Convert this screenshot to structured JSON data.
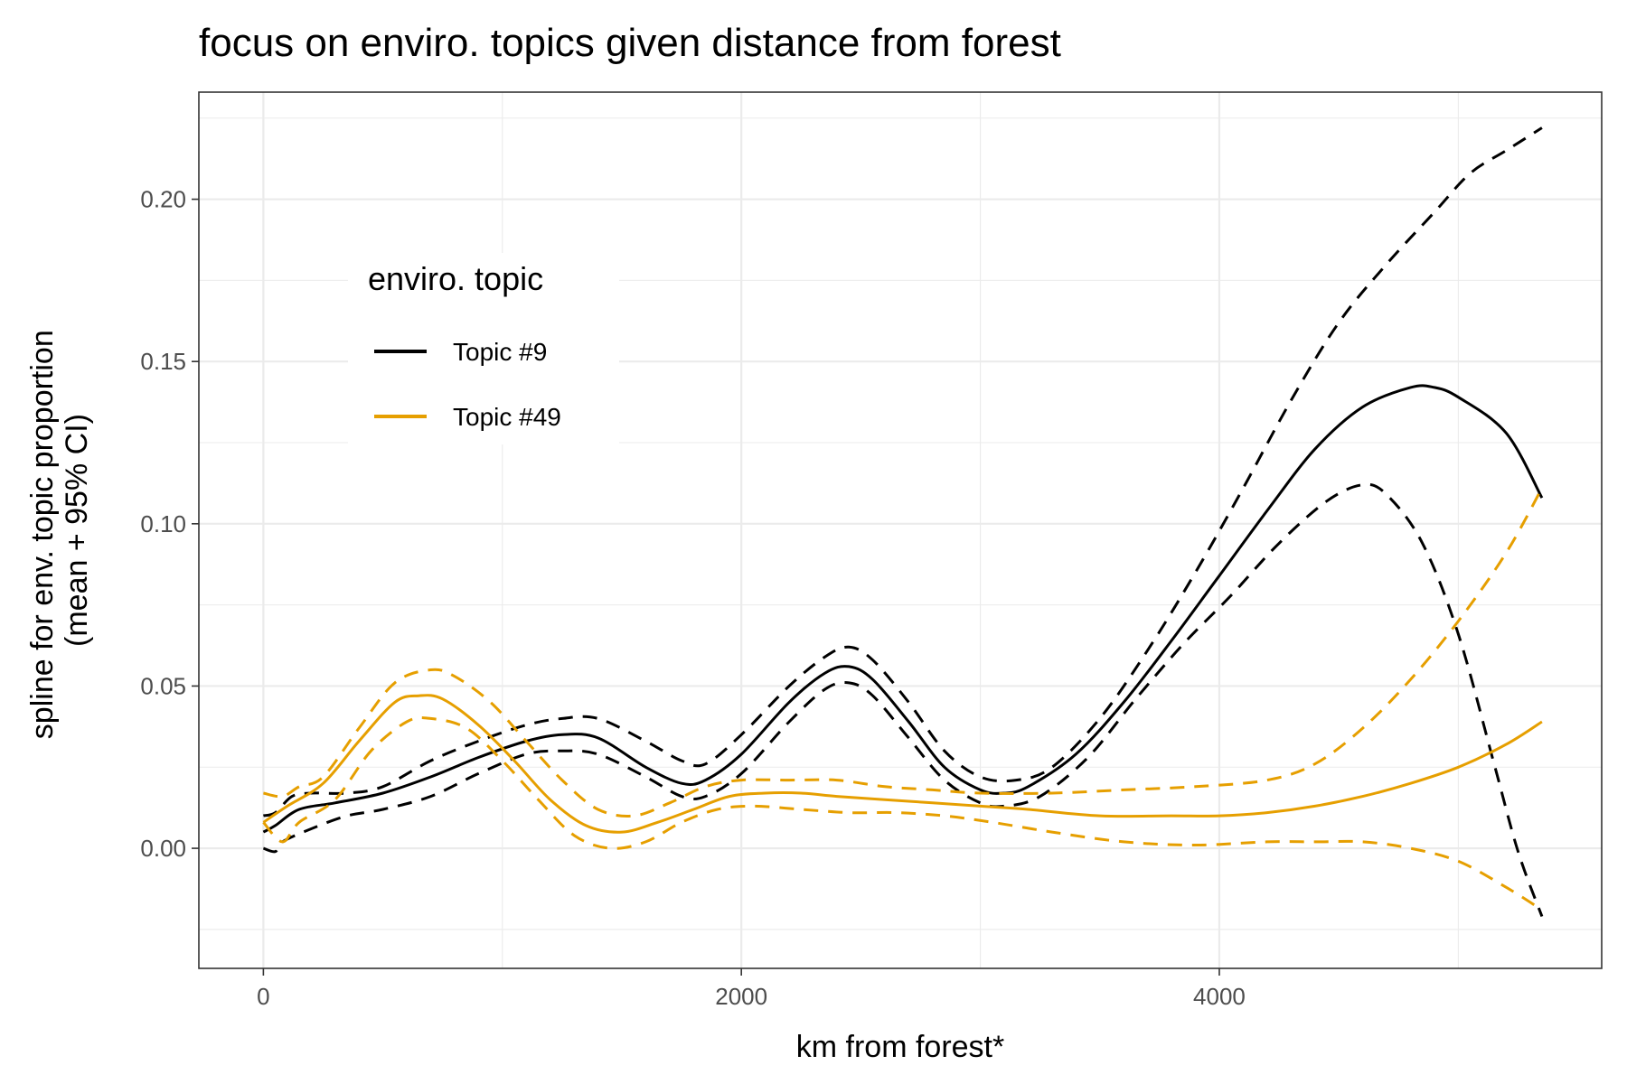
{
  "chart_data": {
    "type": "line",
    "title": "focus on enviro. topics given distance from forest",
    "xlabel": "km from forest*",
    "ylabel": [
      "spline for env. topic proportion",
      "(mean + 95% CI)"
    ],
    "xlim": [
      -270,
      5600
    ],
    "ylim": [
      -0.037,
      0.233
    ],
    "x_ticks": [
      0,
      2000,
      4000
    ],
    "x_tick_labels": [
      "0",
      "2000",
      "4000"
    ],
    "y_ticks": [
      0,
      0.05,
      0.1,
      0.15,
      0.2
    ],
    "y_tick_labels": [
      "0.00",
      "0.05",
      "0.10",
      "0.15",
      "0.20"
    ],
    "grid": true,
    "legend": {
      "title": "enviro. topic",
      "placement": "top-left inside",
      "entries": [
        "Topic #9",
        "Topic #49"
      ]
    },
    "colors": {
      "Topic #9": "#000000",
      "Topic #49": "#E69F00"
    },
    "series": [
      {
        "name": "Topic #9",
        "color": "#000000",
        "style": "solid",
        "points": [
          [
            0,
            0.005
          ],
          [
            50,
            0.007
          ],
          [
            150,
            0.012
          ],
          [
            300,
            0.014
          ],
          [
            500,
            0.017
          ],
          [
            700,
            0.022
          ],
          [
            900,
            0.028
          ],
          [
            1100,
            0.033
          ],
          [
            1250,
            0.035
          ],
          [
            1400,
            0.034
          ],
          [
            1600,
            0.025
          ],
          [
            1750,
            0.02
          ],
          [
            1850,
            0.021
          ],
          [
            2000,
            0.029
          ],
          [
            2200,
            0.045
          ],
          [
            2350,
            0.054
          ],
          [
            2450,
            0.056
          ],
          [
            2550,
            0.052
          ],
          [
            2700,
            0.039
          ],
          [
            2850,
            0.025
          ],
          [
            3000,
            0.018
          ],
          [
            3100,
            0.017
          ],
          [
            3200,
            0.019
          ],
          [
            3400,
            0.029
          ],
          [
            3600,
            0.045
          ],
          [
            3800,
            0.064
          ],
          [
            4000,
            0.084
          ],
          [
            4200,
            0.104
          ],
          [
            4400,
            0.123
          ],
          [
            4600,
            0.136
          ],
          [
            4800,
            0.142
          ],
          [
            4900,
            0.142
          ],
          [
            5000,
            0.139
          ],
          [
            5200,
            0.128
          ],
          [
            5350,
            0.108
          ]
        ]
      },
      {
        "name": "Topic #9 upper CI",
        "color": "#000000",
        "style": "dashed",
        "points": [
          [
            0,
            0.01
          ],
          [
            50,
            0.011
          ],
          [
            120,
            0.016
          ],
          [
            200,
            0.017
          ],
          [
            350,
            0.017
          ],
          [
            500,
            0.019
          ],
          [
            700,
            0.027
          ],
          [
            900,
            0.033
          ],
          [
            1100,
            0.038
          ],
          [
            1250,
            0.04
          ],
          [
            1400,
            0.04
          ],
          [
            1600,
            0.033
          ],
          [
            1750,
            0.027
          ],
          [
            1850,
            0.026
          ],
          [
            2000,
            0.035
          ],
          [
            2200,
            0.05
          ],
          [
            2350,
            0.059
          ],
          [
            2450,
            0.062
          ],
          [
            2550,
            0.058
          ],
          [
            2700,
            0.045
          ],
          [
            2850,
            0.03
          ],
          [
            3000,
            0.022
          ],
          [
            3150,
            0.021
          ],
          [
            3300,
            0.025
          ],
          [
            3500,
            0.04
          ],
          [
            3700,
            0.061
          ],
          [
            3900,
            0.085
          ],
          [
            4100,
            0.111
          ],
          [
            4300,
            0.138
          ],
          [
            4500,
            0.162
          ],
          [
            4700,
            0.18
          ],
          [
            4900,
            0.196
          ],
          [
            5050,
            0.208
          ],
          [
            5200,
            0.215
          ],
          [
            5350,
            0.222
          ]
        ]
      },
      {
        "name": "Topic #9 lower CI",
        "color": "#000000",
        "style": "dashed",
        "points": [
          [
            0,
            0.0
          ],
          [
            50,
            -0.001
          ],
          [
            80,
            0.002
          ],
          [
            200,
            0.006
          ],
          [
            350,
            0.01
          ],
          [
            500,
            0.012
          ],
          [
            700,
            0.016
          ],
          [
            900,
            0.023
          ],
          [
            1100,
            0.029
          ],
          [
            1250,
            0.03
          ],
          [
            1400,
            0.029
          ],
          [
            1600,
            0.022
          ],
          [
            1750,
            0.016
          ],
          [
            1850,
            0.016
          ],
          [
            2000,
            0.023
          ],
          [
            2200,
            0.039
          ],
          [
            2350,
            0.049
          ],
          [
            2450,
            0.051
          ],
          [
            2550,
            0.047
          ],
          [
            2700,
            0.034
          ],
          [
            2850,
            0.021
          ],
          [
            3000,
            0.014
          ],
          [
            3100,
            0.013
          ],
          [
            3250,
            0.016
          ],
          [
            3450,
            0.028
          ],
          [
            3650,
            0.046
          ],
          [
            3850,
            0.063
          ],
          [
            4050,
            0.078
          ],
          [
            4250,
            0.094
          ],
          [
            4450,
            0.107
          ],
          [
            4600,
            0.112
          ],
          [
            4700,
            0.109
          ],
          [
            4850,
            0.094
          ],
          [
            5000,
            0.066
          ],
          [
            5150,
            0.026
          ],
          [
            5250,
            -0.001
          ],
          [
            5350,
            -0.021
          ]
        ]
      },
      {
        "name": "Topic #49",
        "color": "#E69F00",
        "style": "solid",
        "points": [
          [
            0,
            0.008
          ],
          [
            100,
            0.013
          ],
          [
            250,
            0.02
          ],
          [
            400,
            0.033
          ],
          [
            550,
            0.045
          ],
          [
            650,
            0.047
          ],
          [
            750,
            0.046
          ],
          [
            900,
            0.038
          ],
          [
            1050,
            0.027
          ],
          [
            1200,
            0.015
          ],
          [
            1350,
            0.007
          ],
          [
            1500,
            0.005
          ],
          [
            1650,
            0.008
          ],
          [
            1800,
            0.012
          ],
          [
            1950,
            0.016
          ],
          [
            2100,
            0.017
          ],
          [
            2250,
            0.017
          ],
          [
            2400,
            0.016
          ],
          [
            2600,
            0.015
          ],
          [
            2800,
            0.014
          ],
          [
            3000,
            0.013
          ],
          [
            3200,
            0.012
          ],
          [
            3500,
            0.01
          ],
          [
            3800,
            0.01
          ],
          [
            4000,
            0.01
          ],
          [
            4200,
            0.011
          ],
          [
            4400,
            0.013
          ],
          [
            4600,
            0.016
          ],
          [
            4800,
            0.02
          ],
          [
            5000,
            0.025
          ],
          [
            5200,
            0.032
          ],
          [
            5350,
            0.039
          ]
        ]
      },
      {
        "name": "Topic #49 upper CI",
        "color": "#E69F00",
        "style": "dashed",
        "points": [
          [
            0,
            0.017
          ],
          [
            80,
            0.016
          ],
          [
            150,
            0.019
          ],
          [
            250,
            0.022
          ],
          [
            400,
            0.037
          ],
          [
            550,
            0.051
          ],
          [
            700,
            0.055
          ],
          [
            800,
            0.053
          ],
          [
            950,
            0.045
          ],
          [
            1100,
            0.033
          ],
          [
            1250,
            0.021
          ],
          [
            1400,
            0.012
          ],
          [
            1550,
            0.01
          ],
          [
            1700,
            0.014
          ],
          [
            1850,
            0.019
          ],
          [
            2000,
            0.021
          ],
          [
            2200,
            0.021
          ],
          [
            2400,
            0.021
          ],
          [
            2600,
            0.019
          ],
          [
            2800,
            0.018
          ],
          [
            3000,
            0.017
          ],
          [
            3300,
            0.017
          ],
          [
            3600,
            0.018
          ],
          [
            3900,
            0.019
          ],
          [
            4200,
            0.021
          ],
          [
            4400,
            0.026
          ],
          [
            4600,
            0.037
          ],
          [
            4800,
            0.052
          ],
          [
            5000,
            0.07
          ],
          [
            5200,
            0.091
          ],
          [
            5350,
            0.111
          ]
        ]
      },
      {
        "name": "Topic #49 lower CI",
        "color": "#E69F00",
        "style": "dashed",
        "points": [
          [
            0,
            0.008
          ],
          [
            80,
            0.002
          ],
          [
            150,
            0.008
          ],
          [
            300,
            0.015
          ],
          [
            450,
            0.03
          ],
          [
            600,
            0.039
          ],
          [
            700,
            0.04
          ],
          [
            850,
            0.037
          ],
          [
            1000,
            0.027
          ],
          [
            1150,
            0.015
          ],
          [
            1300,
            0.004
          ],
          [
            1450,
            0.0
          ],
          [
            1600,
            0.002
          ],
          [
            1750,
            0.008
          ],
          [
            1900,
            0.012
          ],
          [
            2050,
            0.013
          ],
          [
            2250,
            0.012
          ],
          [
            2450,
            0.011
          ],
          [
            2650,
            0.011
          ],
          [
            2850,
            0.01
          ],
          [
            3050,
            0.008
          ],
          [
            3300,
            0.005
          ],
          [
            3600,
            0.002
          ],
          [
            3900,
            0.001
          ],
          [
            4200,
            0.002
          ],
          [
            4400,
            0.002
          ],
          [
            4600,
            0.002
          ],
          [
            4800,
            0.0
          ],
          [
            5000,
            -0.004
          ],
          [
            5200,
            -0.012
          ],
          [
            5350,
            -0.019
          ]
        ]
      }
    ]
  }
}
